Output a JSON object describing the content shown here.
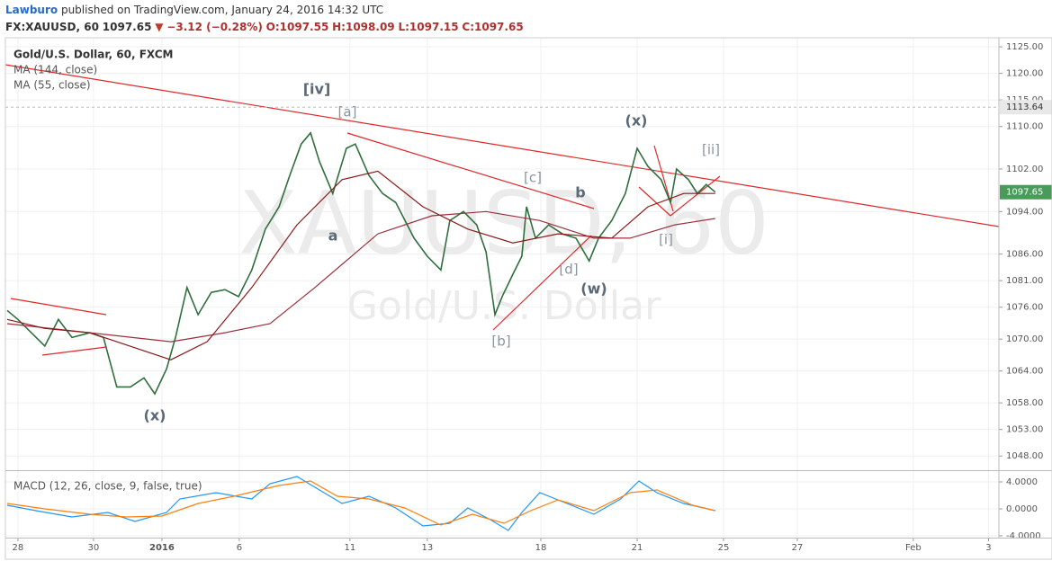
{
  "header": {
    "author": "Lawburo",
    "published": "published on TradingView.com, January 24, 2016 14:32 UTC",
    "symbol": "FX:XAUUSD, 60",
    "price": "1097.65",
    "arrow": "▼",
    "change": "−3.12 (−0.28%)",
    "open": "O:1097.55",
    "high": "H:1098.09",
    "low": "L:1097.15",
    "close": "C:1097.65"
  },
  "chart_data": [
    {
      "type": "line",
      "watermark": "XAUUSD, 60",
      "watermark_subtitle": "Gold/U.S. Dollar",
      "xlim": [
        -0.35,
        27.39
      ],
      "ylim": [
        1045.5,
        1126.7
      ],
      "grid": true,
      "yticks": [
        {
          "value": 1125,
          "label": "1125.00"
        },
        {
          "value": 1120,
          "label": "1120.00"
        },
        {
          "value": 1115,
          "label": "1115.00"
        },
        {
          "value": 1110,
          "label": "1110.00"
        },
        {
          "value": 1102,
          "label": "1102.00"
        },
        {
          "value": 1094,
          "label": "1094.00"
        },
        {
          "value": 1086,
          "label": "1086.00"
        },
        {
          "value": 1081,
          "label": "1081.00"
        },
        {
          "value": 1076,
          "label": "1076.00"
        },
        {
          "value": 1070,
          "label": "1070.00"
        },
        {
          "value": 1064,
          "label": "1064.00"
        },
        {
          "value": 1058,
          "label": "1058.00"
        },
        {
          "value": 1053,
          "label": "1053.00"
        },
        {
          "value": 1048,
          "label": "1048.00"
        }
      ],
      "last_price": 1097.65,
      "level_line": 1113.64,
      "annotations": [
        "[iv]",
        "[a]",
        "a",
        "(x)",
        "[b]",
        "[c]",
        "b",
        "[d]",
        "(w)",
        "(x)",
        "[ii]",
        "[i]"
      ],
      "series": [
        {
          "name": "Gold/U.S. Dollar, 60, FXCM",
          "color": "#2f6f3e",
          "x": [
            -0.3,
            0,
            0.75,
            1.13,
            1.51,
            2.01,
            2.39,
            2.76,
            3.14,
            3.52,
            3.82,
            4.15,
            4.4,
            4.72,
            5.03,
            5.4,
            5.78,
            6.16,
            6.53,
            6.91,
            7.29,
            7.59,
            7.91,
            8.17,
            8.42,
            8.79,
            9.17,
            9.42,
            9.8,
            10.18,
            10.55,
            11.06,
            11.43,
            11.81,
            12.06,
            12.44,
            12.81,
            13.07,
            13.32,
            13.52,
            13.82,
            14.07,
            14.2,
            14.45,
            14.82,
            15.2,
            15.58,
            15.95,
            16.21,
            16.58,
            16.96,
            17.29,
            17.59,
            17.96,
            18.22,
            18.39,
            18.72,
            18.97,
            19.22,
            19.47
          ],
          "values": [
            1075.4,
            1073.7,
            1068.7,
            1073.7,
            1070.3,
            1071.2,
            1070.3,
            1061.0,
            1061.0,
            1062.7,
            1059.7,
            1064.4,
            1070.3,
            1079.7,
            1074.6,
            1078.8,
            1079.3,
            1078.0,
            1083.0,
            1090.7,
            1094.9,
            1100.8,
            1106.7,
            1108.8,
            1103.4,
            1097.4,
            1105.9,
            1106.7,
            1100.8,
            1097.4,
            1095.7,
            1089.0,
            1085.6,
            1083.0,
            1092.3,
            1094.0,
            1091.5,
            1086.4,
            1074.6,
            1078.0,
            1082.2,
            1085.6,
            1094.9,
            1089.0,
            1091.5,
            1089.8,
            1089.0,
            1084.7,
            1089.0,
            1092.3,
            1097.4,
            1105.9,
            1102.5,
            1100.0,
            1095.7,
            1102.0,
            1100.0,
            1097.4,
            1099.1,
            1097.65
          ]
        },
        {
          "name": "MA (144, close)",
          "color": "#9c2f3c",
          "x": [
            -0.3,
            4.27,
            5.78,
            7.04,
            8.29,
            10.05,
            11.56,
            13.07,
            14.57,
            16.08,
            17.09,
            18.34,
            19.47
          ],
          "values": [
            1072.9,
            1069.5,
            1071.2,
            1072.9,
            1079.7,
            1089.8,
            1093.2,
            1094.0,
            1092.3,
            1089.0,
            1089.0,
            1091.5,
            1092.7
          ]
        },
        {
          "name": "MA (55, close)",
          "color": "#8b1a1a",
          "x": [
            -0.3,
            0.75,
            2.01,
            4.27,
            5.28,
            6.53,
            7.79,
            9.05,
            10.05,
            11.31,
            12.56,
            13.82,
            15.08,
            16.58,
            17.59,
            18.59,
            19.47
          ],
          "values": [
            1073.7,
            1072.0,
            1071.2,
            1066.1,
            1069.5,
            1079.7,
            1091.5,
            1100.0,
            1101.6,
            1094.9,
            1090.7,
            1088.1,
            1089.8,
            1089.0,
            1094.9,
            1097.4,
            1097.4
          ]
        }
      ]
    },
    {
      "type": "line",
      "xlim": [
        -0.35,
        27.39
      ],
      "ylim": [
        -4.27,
        5.47
      ],
      "grid": true,
      "yticks": [
        {
          "value": 4,
          "label": "4.0000"
        },
        {
          "value": 0,
          "label": "0.0000"
        },
        {
          "value": -4,
          "label": "-4.0000"
        }
      ],
      "xticks": [
        {
          "value": 0,
          "label": "28"
        },
        {
          "value": 2.11,
          "label": "30"
        },
        {
          "value": 4.02,
          "label": "2016"
        },
        {
          "value": 6.18,
          "label": "6"
        },
        {
          "value": 9.27,
          "label": "11"
        },
        {
          "value": 11.43,
          "label": "13"
        },
        {
          "value": 14.6,
          "label": "18"
        },
        {
          "value": 17.29,
          "label": "21"
        },
        {
          "value": 19.7,
          "label": "25"
        },
        {
          "value": 21.76,
          "label": "27"
        },
        {
          "value": 25,
          "label": "Feb"
        },
        {
          "value": 27.1,
          "label": "3"
        }
      ],
      "series": [
        {
          "name": "MACD (12, 26, close, 9, false, true)",
          "color": "#2196f3",
          "x": [
            -0.3,
            0.5,
            1.51,
            2.51,
            3.27,
            4.15,
            4.52,
            5.53,
            6.53,
            7.04,
            7.79,
            8.42,
            9.05,
            9.8,
            10.55,
            11.31,
            12.06,
            12.56,
            13.19,
            13.69,
            14.07,
            14.57,
            15.33,
            16.08,
            16.83,
            17.34,
            17.84,
            18.59,
            19.47
          ],
          "values": [
            0.53,
            -0.27,
            -1.2,
            -0.53,
            -1.87,
            -0.53,
            1.47,
            2.4,
            1.47,
            3.73,
            4.8,
            2.8,
            0.8,
            1.87,
            0.13,
            -2.53,
            -2.13,
            0.13,
            -1.6,
            -3.2,
            -0.53,
            2.4,
            0.8,
            -0.8,
            1.47,
            4.13,
            2.4,
            0.8,
            -0.27
          ]
        },
        {
          "color": "#ff7f0e",
          "x": [
            -0.3,
            0.75,
            2.01,
            3.02,
            4.02,
            5.03,
            6.03,
            7.29,
            8.17,
            8.92,
            9.8,
            10.8,
            11.81,
            12.69,
            13.57,
            14.32,
            15.08,
            16.08,
            17.09,
            17.84,
            18.84,
            19.47
          ],
          "values": [
            0.8,
            0,
            -0.8,
            -1.2,
            -1.07,
            0.8,
            1.87,
            3.47,
            4.13,
            1.87,
            1.47,
            0.13,
            -2.4,
            -0.8,
            -2.13,
            -0.27,
            1.33,
            -0.27,
            2.4,
            2.8,
            0.53,
            -0.27
          ]
        }
      ]
    }
  ]
}
